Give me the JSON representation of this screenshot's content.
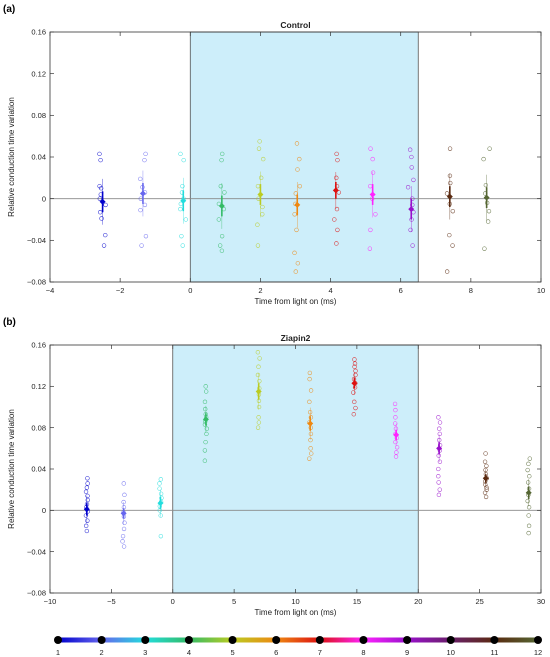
{
  "panel_labels": [
    "(a)",
    "(b)"
  ],
  "colorbar": {
    "labels": [
      "1",
      "2",
      "3",
      "4",
      "5",
      "6",
      "7",
      "8",
      "9",
      "10",
      "11",
      "12"
    ],
    "colors": [
      "#0000cc",
      "#6666ee",
      "#22dddd",
      "#33bb66",
      "#bbcc22",
      "#ee8811",
      "#dd1111",
      "#ff22ff",
      "#9911cc",
      "#6a1f6a",
      "#5a2a10",
      "#556633"
    ]
  },
  "chart_data": [
    {
      "type": "scatter",
      "title": "Control",
      "xlabel": "Time from light on (ms)",
      "ylabel": "Relative conduction time variation",
      "xlim": [
        -4,
        10
      ],
      "ylim": [
        -0.08,
        0.16
      ],
      "xticks": [
        "-4",
        "-2",
        "0",
        "2",
        "4",
        "6",
        "8",
        "10"
      ],
      "yticks": [
        "-0.08",
        "-0.04",
        "0",
        "0.04",
        "0.08",
        "0.12",
        "0.16"
      ],
      "shaded_x": [
        0,
        6.5
      ],
      "zero_line": true,
      "series": [
        {
          "color": "#0000cc",
          "x": -2.5,
          "mean": -0.003,
          "err": 0.01,
          "points": [
            0.043,
            0.037,
            0.012,
            0.01,
            0.004,
            0.0,
            -0.006,
            -0.013,
            -0.019,
            -0.035,
            -0.045
          ]
        },
        {
          "color": "#6666ee",
          "x": -1.35,
          "mean": 0.005,
          "err": 0.01,
          "points": [
            0.043,
            0.037,
            0.019,
            0.011,
            0.006,
            0.0,
            -0.006,
            -0.011,
            -0.036,
            -0.045
          ]
        },
        {
          "color": "#22dddd",
          "x": -0.2,
          "mean": -0.002,
          "err": 0.01,
          "points": [
            0.043,
            0.037,
            0.012,
            0.006,
            0.0,
            -0.005,
            -0.01,
            -0.02,
            -0.036,
            -0.045
          ]
        },
        {
          "color": "#33bb66",
          "x": 0.9,
          "mean": -0.007,
          "err": 0.01,
          "points": [
            0.043,
            0.037,
            0.012,
            0.006,
            -0.005,
            -0.01,
            -0.02,
            -0.036,
            -0.045,
            -0.05
          ]
        },
        {
          "color": "#bbcc22",
          "x": 2.0,
          "mean": 0.004,
          "err": 0.01,
          "points": [
            0.055,
            0.048,
            0.038,
            0.02,
            0.012,
            0.0,
            -0.008,
            -0.015,
            -0.025,
            -0.045
          ]
        },
        {
          "color": "#ee8811",
          "x": 3.05,
          "mean": -0.006,
          "err": 0.01,
          "points": [
            0.053,
            0.038,
            0.028,
            0.012,
            0.005,
            -0.005,
            -0.015,
            -0.03,
            -0.052,
            -0.062,
            -0.07
          ]
        },
        {
          "color": "#dd1111",
          "x": 4.15,
          "mean": 0.008,
          "err": 0.008,
          "points": [
            0.043,
            0.037,
            0.02,
            0.012,
            0.006,
            -0.01,
            -0.02,
            -0.03,
            -0.043
          ]
        },
        {
          "color": "#ff22ff",
          "x": 5.2,
          "mean": 0.004,
          "err": 0.01,
          "points": [
            0.048,
            0.038,
            0.025,
            0.012,
            0.0,
            -0.015,
            -0.03,
            -0.048
          ]
        },
        {
          "color": "#9911cc",
          "x": 6.3,
          "mean": -0.01,
          "err": 0.01,
          "points": [
            0.047,
            0.04,
            0.03,
            0.018,
            0.011,
            0.0,
            -0.006,
            -0.013,
            -0.02,
            -0.03,
            -0.045
          ]
        },
        {
          "color": "#5a2a10",
          "x": 7.4,
          "mean": 0.002,
          "err": 0.01,
          "points": [
            0.048,
            0.022,
            0.015,
            0.005,
            -0.005,
            -0.012,
            -0.035,
            -0.045,
            -0.07
          ]
        },
        {
          "color": "#556633",
          "x": 8.45,
          "mean": 0.001,
          "err": 0.01,
          "points": [
            0.048,
            0.038,
            0.013,
            0.005,
            -0.004,
            -0.012,
            -0.022,
            -0.048
          ]
        }
      ]
    },
    {
      "type": "scatter",
      "title": "Ziapin2",
      "xlabel": "Time from light on (ms)",
      "ylabel": "Relative conduction time variation",
      "xlim": [
        -10,
        30
      ],
      "ylim": [
        -0.08,
        0.16
      ],
      "xticks": [
        "-10",
        "-5",
        "0",
        "5",
        "10",
        "15",
        "20",
        "25",
        "30"
      ],
      "yticks": [
        "-0.08",
        "-0.04",
        "0",
        "0.04",
        "0.08",
        "0.12",
        "0.16"
      ],
      "shaded_x": [
        0,
        20
      ],
      "zero_line": true,
      "series": [
        {
          "color": "#0000cc",
          "x": -7.0,
          "mean": 0.001,
          "err": 0.006,
          "points": [
            0.031,
            0.026,
            0.022,
            0.018,
            0.014,
            0.01,
            0.006,
            0.003,
            -0.001,
            -0.005,
            -0.01,
            -0.015,
            -0.02
          ]
        },
        {
          "color": "#6666ee",
          "x": -4.0,
          "mean": -0.003,
          "err": 0.005,
          "points": [
            0.026,
            0.015,
            0.008,
            0.003,
            -0.002,
            -0.006,
            -0.012,
            -0.018,
            -0.025,
            -0.03,
            -0.035
          ]
        },
        {
          "color": "#22dddd",
          "x": -1.0,
          "mean": 0.007,
          "err": 0.006,
          "points": [
            0.03,
            0.026,
            0.021,
            0.016,
            0.012,
            0.008,
            0.004,
            0.0,
            -0.005,
            -0.025
          ]
        },
        {
          "color": "#33bb66",
          "x": 2.7,
          "mean": 0.088,
          "err": 0.006,
          "points": [
            0.12,
            0.115,
            0.105,
            0.098,
            0.093,
            0.09,
            0.086,
            0.083,
            0.079,
            0.074,
            0.066,
            0.058,
            0.048
          ]
        },
        {
          "color": "#bbcc22",
          "x": 7.0,
          "mean": 0.115,
          "err": 0.008,
          "points": [
            0.153,
            0.147,
            0.139,
            0.131,
            0.125,
            0.118,
            0.112,
            0.106,
            0.1,
            0.09,
            0.085,
            0.08
          ]
        },
        {
          "color": "#ee8811",
          "x": 11.2,
          "mean": 0.084,
          "err": 0.007,
          "points": [
            0.133,
            0.127,
            0.116,
            0.105,
            0.095,
            0.09,
            0.085,
            0.08,
            0.074,
            0.068,
            0.06,
            0.055,
            0.05
          ]
        },
        {
          "color": "#dd1111",
          "x": 14.8,
          "mean": 0.123,
          "err": 0.005,
          "points": [
            0.146,
            0.142,
            0.139,
            0.135,
            0.131,
            0.127,
            0.123,
            0.119,
            0.114,
            0.105,
            0.099,
            0.093
          ]
        },
        {
          "color": "#ff22ff",
          "x": 18.2,
          "mean": 0.073,
          "err": 0.005,
          "points": [
            0.103,
            0.097,
            0.09,
            0.084,
            0.079,
            0.074,
            0.07,
            0.066,
            0.061,
            0.056,
            0.052
          ]
        },
        {
          "color": "#9911cc",
          "x": 21.7,
          "mean": 0.06,
          "err": 0.006,
          "points": [
            0.09,
            0.085,
            0.079,
            0.074,
            0.068,
            0.063,
            0.058,
            0.053,
            0.047,
            0.04,
            0.033,
            0.027,
            0.02,
            0.015
          ]
        },
        {
          "color": "#5a2a10",
          "x": 25.5,
          "mean": 0.031,
          "err": 0.004,
          "points": [
            0.055,
            0.047,
            0.043,
            0.039,
            0.035,
            0.031,
            0.028,
            0.025,
            0.022,
            0.02,
            0.017,
            0.013
          ]
        },
        {
          "color": "#556633",
          "x": 29.0,
          "mean": 0.017,
          "err": 0.006,
          "points": [
            0.05,
            0.045,
            0.039,
            0.033,
            0.027,
            0.021,
            0.015,
            0.009,
            0.003,
            -0.005,
            -0.015,
            -0.022
          ]
        }
      ]
    }
  ]
}
